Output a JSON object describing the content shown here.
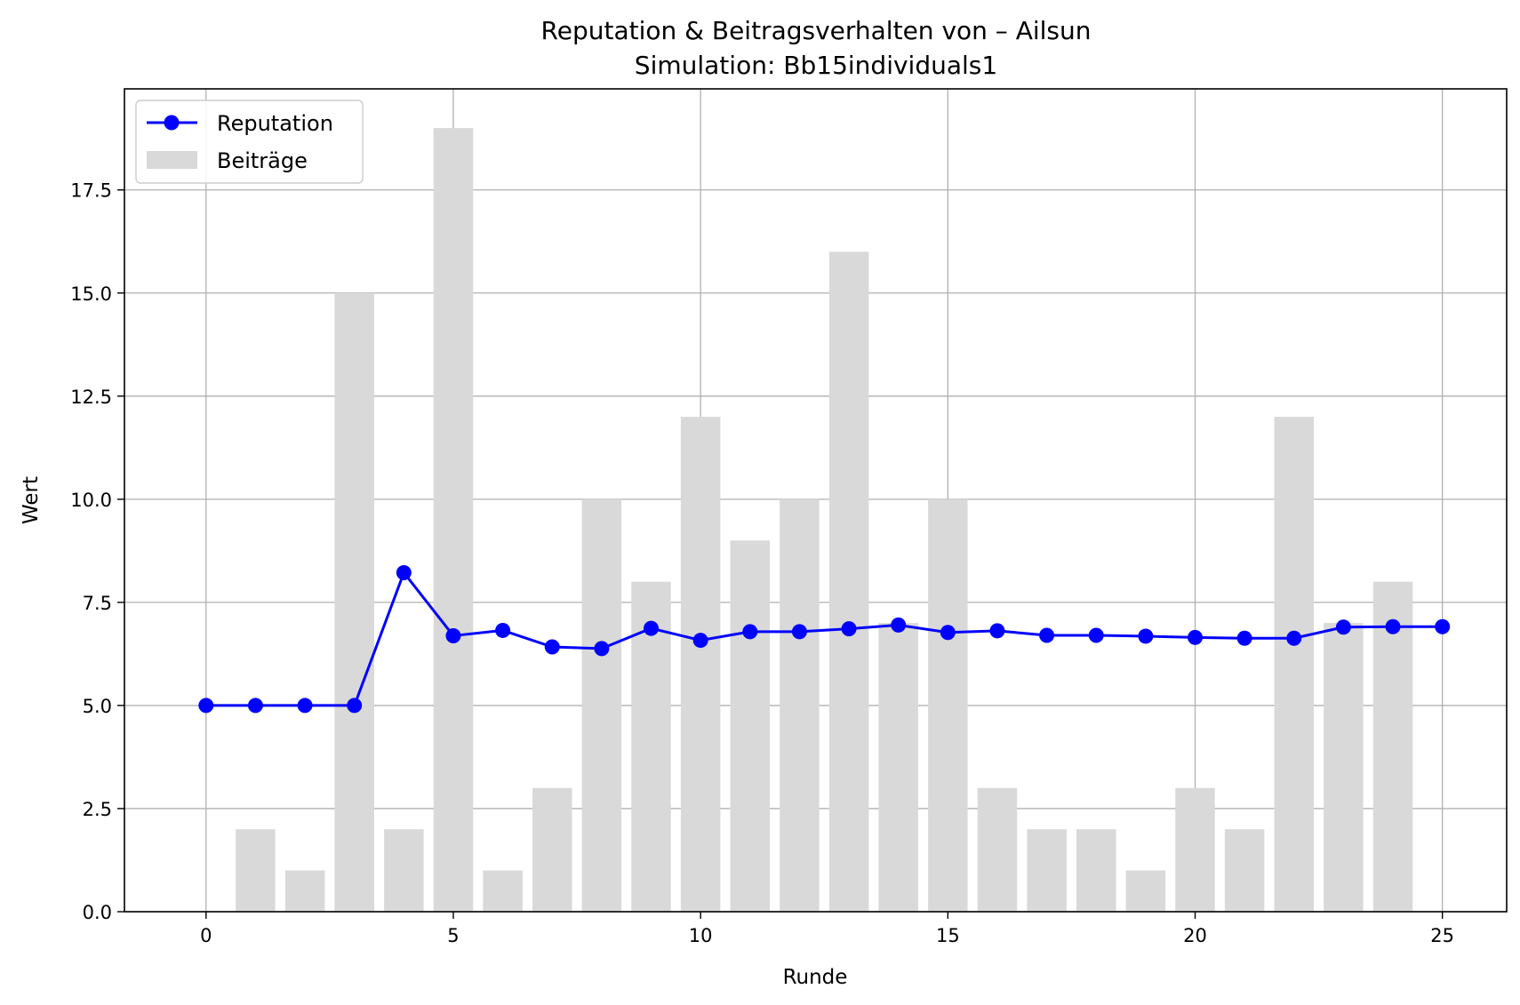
{
  "chart_data": {
    "type": "bar",
    "title": "Reputation & Beitragsverhalten von – Ailsun",
    "subtitle": "Simulation: Bb15individuals1",
    "xlabel": "Runde",
    "ylabel": "Wert",
    "xlim": [
      -1.65,
      26.3
    ],
    "ylim": [
      0,
      19.95
    ],
    "xticks": [
      0,
      5,
      10,
      15,
      20,
      25
    ],
    "xtick_labels": [
      "0",
      "5",
      "10",
      "15",
      "20",
      "25"
    ],
    "yticks": [
      0,
      2.5,
      5,
      7.5,
      10,
      12.5,
      15,
      17.5
    ],
    "ytick_labels": [
      "0.0",
      "2.5",
      "5.0",
      "7.5",
      "10.0",
      "12.5",
      "15.0",
      "17.5"
    ],
    "grid": true,
    "legend_position": "top-left",
    "series": [
      {
        "name": "Beiträge",
        "type": "bar",
        "color": "#d9d9d9",
        "x": [
          1,
          2,
          3,
          4,
          5,
          6,
          7,
          8,
          9,
          10,
          11,
          12,
          13,
          14,
          15,
          16,
          17,
          18,
          19,
          20,
          21,
          22,
          23,
          24
        ],
        "values": [
          2,
          1,
          15,
          2,
          19,
          1,
          3,
          10,
          8,
          12,
          9,
          10,
          16,
          7,
          10,
          3,
          2,
          2,
          1,
          3,
          2,
          12,
          7,
          8
        ]
      },
      {
        "name": "Reputation",
        "type": "line",
        "marker": "circle",
        "color": "#0000ff",
        "x": [
          0,
          1,
          2,
          3,
          4,
          5,
          6,
          7,
          8,
          9,
          10,
          11,
          12,
          13,
          14,
          15,
          16,
          17,
          18,
          19,
          20,
          21,
          22,
          23,
          24,
          25
        ],
        "values": [
          5.0,
          5.0,
          5.0,
          5.0,
          8.22,
          6.69,
          6.82,
          6.42,
          6.38,
          6.87,
          6.58,
          6.79,
          6.79,
          6.86,
          6.95,
          6.77,
          6.81,
          6.7,
          6.7,
          6.68,
          6.65,
          6.63,
          6.63,
          6.9,
          6.91,
          6.91
        ]
      }
    ]
  }
}
